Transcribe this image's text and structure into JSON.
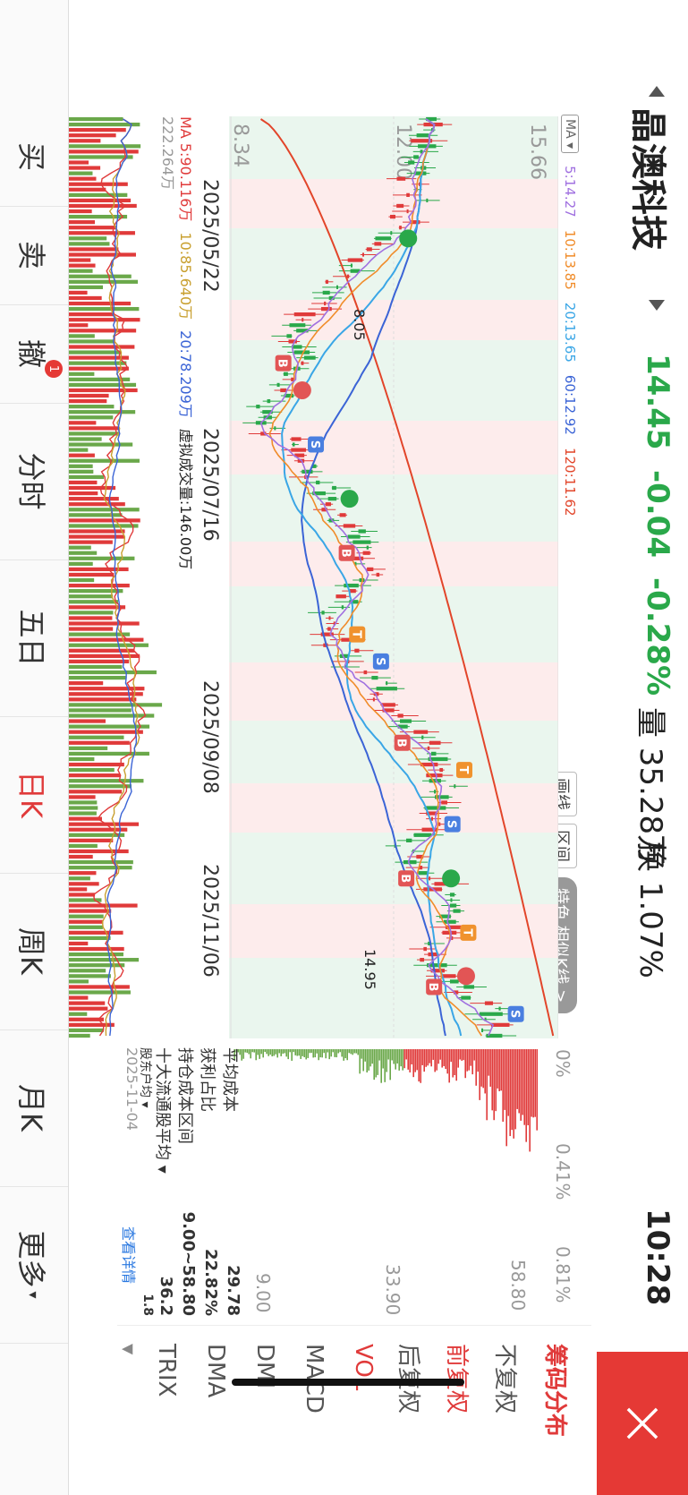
{
  "header": {
    "stock_name": "晶澳科技",
    "price": "14.45",
    "change": "-0.04",
    "change_pct": "-0.28%",
    "volume": "量 35.28万",
    "turnover": "换 1.07%",
    "time": "10:28"
  },
  "ma": {
    "selector": "MA",
    "items": [
      {
        "label": "5:14.27",
        "color": "#a070e0"
      },
      {
        "label": "10:13.85",
        "color": "#f08c2a"
      },
      {
        "label": "20:13.65",
        "color": "#3aa6e6"
      },
      {
        "label": "60:12.92",
        "color": "#3b64d6"
      },
      {
        "label": "120:11.62",
        "color": "#e2452a"
      }
    ]
  },
  "toolbar": {
    "draw": "画线",
    "range": "区间",
    "feature": "特色 相似K线 >"
  },
  "axis": {
    "y_top": "15.66",
    "y_mid": "12.00",
    "y_low": "8.34",
    "dates": [
      "2025/05/22",
      "2025/07/16",
      "2025/09/08",
      "2025/11/06"
    ]
  },
  "annotations": {
    "low": "8.05",
    "high": "14.95"
  },
  "volume": {
    "ma5": "MA 5:90.116万",
    "ma10": "10:85.640万",
    "ma20": "20:78.209万",
    "virtual": "虚拟成交量:146.00万",
    "scale": "222.264万"
  },
  "chip": {
    "pct_axis": [
      "0%",
      "0.41%",
      "0.81%"
    ],
    "price_axis": [
      "58.80",
      "33.90",
      "9.00"
    ],
    "avg_cost_label": "平均成本",
    "avg_cost": "29.78",
    "profit_label": "获利占比",
    "profit": "22.82%",
    "range_label": "持仓成本区间",
    "range": "9.00~58.80",
    "top10_label": "十大流通股平均",
    "top10": "36.2",
    "holder_label": "股东户均",
    "holder": "1.8",
    "date": "2025-11-04",
    "detail_link": "查看详情"
  },
  "right_menu": {
    "title": "筹码分布",
    "items": [
      "不复权",
      "前复权",
      "后复权",
      "VOL",
      "MACD",
      "DMI",
      "DMA",
      "TRIX"
    ],
    "active_adjust": "前复权",
    "active_indicator": "VOL"
  },
  "tabs": [
    "买",
    "卖",
    "撤",
    "分时",
    "五日",
    "日K",
    "周K",
    "月K",
    "更多"
  ],
  "tab_badge": "1",
  "active_tab": "日K"
}
